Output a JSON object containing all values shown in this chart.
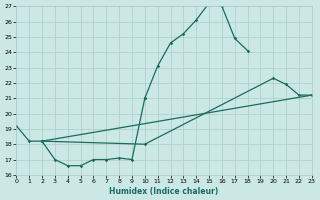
{
  "xlabel": "Humidex (Indice chaleur)",
  "bg_color": "#cce8e4",
  "grid_color": "#aaccc8",
  "line_color": "#1a6b60",
  "xlim": [
    0,
    23
  ],
  "ylim": [
    16,
    27
  ],
  "yticks": [
    16,
    17,
    18,
    19,
    20,
    21,
    22,
    23,
    24,
    25,
    26,
    27
  ],
  "xticks": [
    0,
    1,
    2,
    3,
    4,
    5,
    6,
    7,
    8,
    9,
    10,
    11,
    12,
    13,
    14,
    15,
    16,
    17,
    18,
    19,
    20,
    21,
    22,
    23
  ],
  "curve1_x": [
    0,
    1,
    2,
    3,
    4,
    5,
    6,
    7,
    8,
    9,
    10
  ],
  "curve1_y": [
    19.2,
    18.2,
    18.2,
    17.0,
    16.6,
    16.6,
    17.0,
    17.0,
    17.1,
    17.0,
    21.0
  ],
  "curve2_x": [
    10,
    11,
    12,
    13,
    14,
    15,
    16,
    17,
    18
  ],
  "curve2_y": [
    21.0,
    23.1,
    24.6,
    25.2,
    26.1,
    27.2,
    27.0,
    24.9,
    24.1
  ],
  "curve3_x": [
    2,
    10,
    20,
    21,
    22,
    23
  ],
  "curve3_y": [
    18.2,
    18.0,
    22.3,
    21.9,
    21.2,
    21.2
  ],
  "curve4_x": [
    2,
    23
  ],
  "curve4_y": [
    18.2,
    21.2
  ]
}
